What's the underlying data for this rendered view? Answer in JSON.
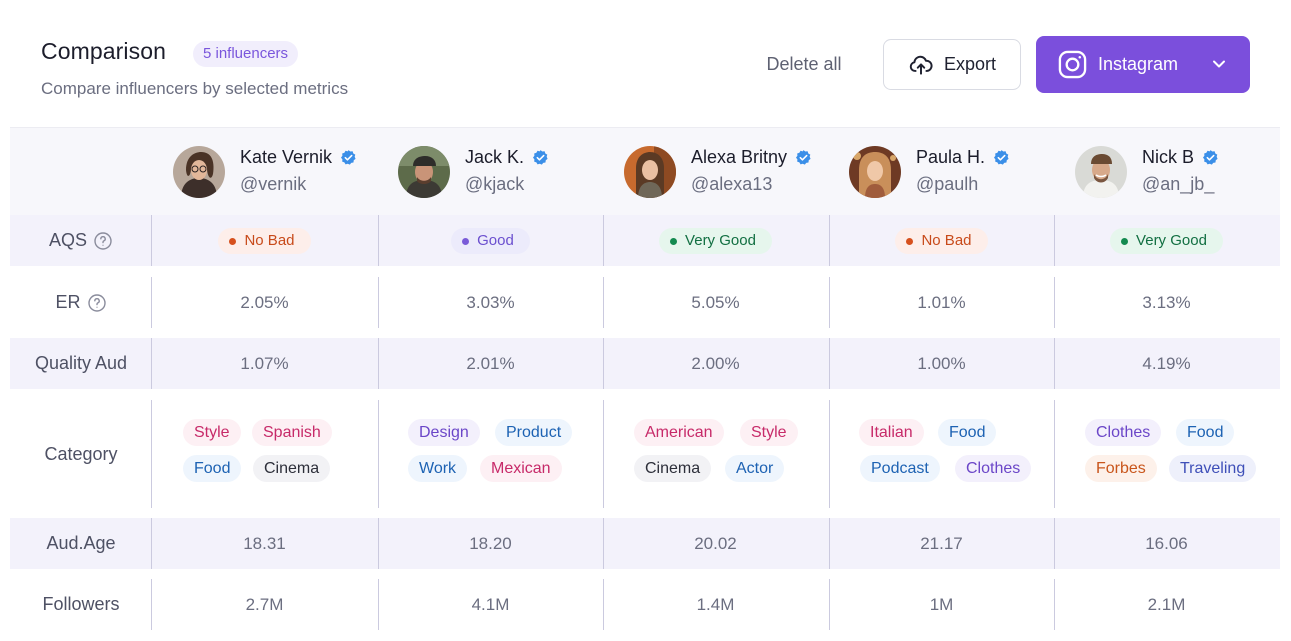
{
  "header": {
    "title": "Comparison",
    "count_badge": "5 influencers",
    "subtitle": "Compare influencers by selected metrics",
    "delete_all_label": "Delete all",
    "export_label": "Export",
    "platform_label": "Instagram"
  },
  "colors": {
    "accent": "#7b4fdc",
    "verified": "#3b8fe8",
    "status_bad": "#d6501d",
    "status_good": "#7a5bd8",
    "status_very_good": "#138a4f"
  },
  "influencers": [
    {
      "name": "Kate Vernik",
      "handle": "@vernik"
    },
    {
      "name": "Jack K.",
      "handle": "@kjack"
    },
    {
      "name": "Alexa Britny",
      "handle": "@alexa13"
    },
    {
      "name": "Paula H.",
      "handle": "@paulh"
    },
    {
      "name": "Nick B",
      "handle": "@an_jb_"
    }
  ],
  "rows": {
    "aqs": {
      "label": "AQS",
      "values": [
        "No Bad",
        "Good",
        "Very Good",
        "No Bad",
        "Very Good"
      ]
    },
    "er": {
      "label": "ER",
      "values": [
        "2.05%",
        "3.03%",
        "5.05%",
        "1.01%",
        "3.13%"
      ]
    },
    "quality_aud": {
      "label": "Quality Aud",
      "values": [
        "1.07%",
        "2.01%",
        "2.00%",
        "1.00%",
        "4.19%"
      ]
    },
    "category": {
      "label": "Category",
      "values": [
        [
          "Style",
          "Spanish",
          "Food",
          "Cinema"
        ],
        [
          "Design",
          "Product",
          "Work",
          "Mexican"
        ],
        [
          "American",
          "Style",
          "Cinema",
          "Actor"
        ],
        [
          "Italian",
          "Food",
          "Podcast",
          "Clothes"
        ],
        [
          "Clothes",
          "Food",
          "Forbes",
          "Traveling"
        ]
      ]
    },
    "aud_age": {
      "label": "Aud.Age",
      "values": [
        "18.31",
        "18.20",
        "20.02",
        "21.17",
        "16.06"
      ]
    },
    "followers": {
      "label": "Followers",
      "values": [
        "2.7M",
        "4.1M",
        "1.4M",
        "1M",
        "2.1M"
      ]
    }
  },
  "icons": {
    "export": "upload-cloud-icon",
    "platform": "instagram-icon",
    "dropdown": "chevron-down-icon",
    "verified": "verified-badge-icon",
    "help": "help-circle-icon"
  }
}
